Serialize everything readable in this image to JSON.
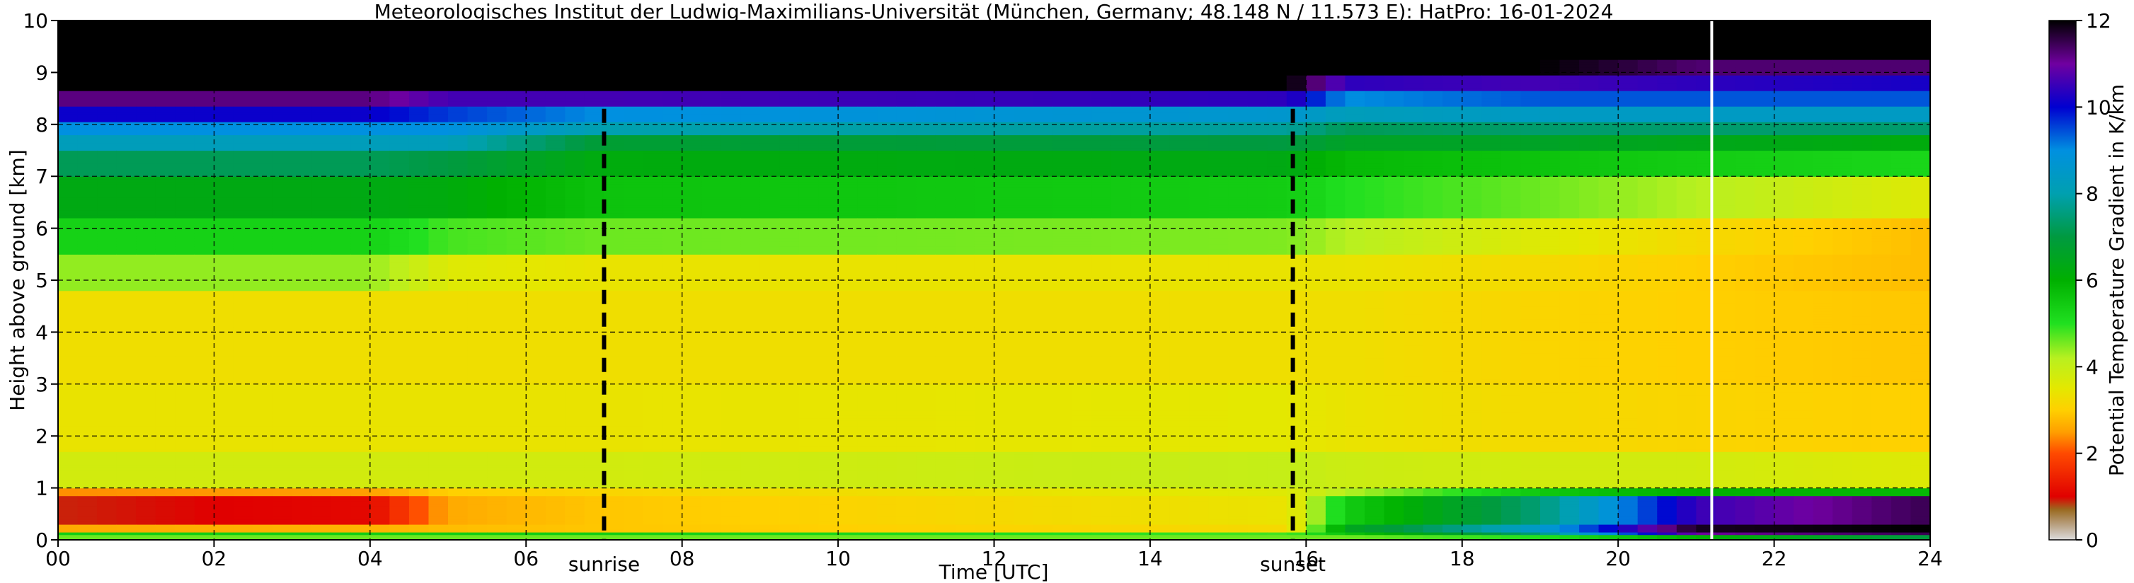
{
  "chart_data": {
    "type": "heatmap",
    "title": "Meteorologisches Institut der Ludwig-Maximilians-Universität (München, Germany; 48.148 N / 11.573 E):    HatPro: 16-01-2024",
    "xlabel": "Time [UTC]",
    "ylabel": "Height above ground [km]",
    "xlim": [
      0,
      24
    ],
    "ylim": [
      0,
      10
    ],
    "x_ticks": [
      "00",
      "02",
      "04",
      "06",
      "08",
      "10",
      "12",
      "14",
      "16",
      "18",
      "20",
      "22",
      "24"
    ],
    "y_ticks": [
      "0",
      "1",
      "2",
      "3",
      "4",
      "5",
      "6",
      "7",
      "8",
      "9",
      "10"
    ],
    "grid": true,
    "markers": [
      {
        "label": "sunrise",
        "x": 7.0
      },
      {
        "label": "sunset",
        "x": 15.83
      }
    ],
    "data_end_x": 21.2,
    "colorbar": {
      "label": "Potential Temperature Gradient in K/km",
      "range": [
        0,
        12
      ],
      "ticks": [
        "0",
        "2",
        "4",
        "6",
        "8",
        "10",
        "12"
      ],
      "stops": [
        {
          "v": 0.0,
          "c": "#dcdcdc"
        },
        {
          "v": 0.35,
          "c": "#b8a080"
        },
        {
          "v": 0.7,
          "c": "#9a6a20"
        },
        {
          "v": 1.0,
          "c": "#e00000"
        },
        {
          "v": 2.0,
          "c": "#ff4a00"
        },
        {
          "v": 2.5,
          "c": "#ffa000"
        },
        {
          "v": 3.0,
          "c": "#ffd000"
        },
        {
          "v": 3.5,
          "c": "#e4e800"
        },
        {
          "v": 4.2,
          "c": "#b8f020"
        },
        {
          "v": 5.0,
          "c": "#20e020"
        },
        {
          "v": 6.0,
          "c": "#00b000"
        },
        {
          "v": 7.0,
          "c": "#009a40"
        },
        {
          "v": 8.0,
          "c": "#00a0b0"
        },
        {
          "v": 9.0,
          "c": "#0090e0"
        },
        {
          "v": 10.0,
          "c": "#0000d0"
        },
        {
          "v": 11.0,
          "c": "#7000a0"
        },
        {
          "v": 12.0,
          "c": "#000000"
        }
      ]
    },
    "field": [
      {
        "x": 0,
        "bands": [
          [
            0,
            0.08,
            4.6
          ],
          [
            0.08,
            0.15,
            5.4
          ],
          [
            0.15,
            0.3,
            2.6
          ],
          [
            0.3,
            0.85,
            0.9
          ],
          [
            0.85,
            1.0,
            2.4
          ],
          [
            1.0,
            1.7,
            3.8
          ],
          [
            1.7,
            3.0,
            3.4
          ],
          [
            3.0,
            4.8,
            3.3
          ],
          [
            4.8,
            5.5,
            4.4
          ],
          [
            5.5,
            6.2,
            5.3
          ],
          [
            6.2,
            7.0,
            6.3
          ],
          [
            7.0,
            7.5,
            7.2
          ],
          [
            7.5,
            7.8,
            8.2
          ],
          [
            7.8,
            8.05,
            9.0
          ],
          [
            8.05,
            8.35,
            10.1
          ],
          [
            8.35,
            8.65,
            11.2
          ],
          [
            8.65,
            10,
            12
          ]
        ]
      },
      {
        "x": 4,
        "bands": [
          [
            0,
            0.08,
            4.6
          ],
          [
            0.08,
            0.15,
            5.4
          ],
          [
            0.15,
            0.3,
            2.7
          ],
          [
            0.3,
            0.85,
            1.1
          ],
          [
            0.85,
            1.0,
            2.5
          ],
          [
            1.0,
            1.7,
            3.8
          ],
          [
            1.7,
            3.0,
            3.4
          ],
          [
            3.0,
            4.8,
            3.3
          ],
          [
            4.8,
            5.5,
            4.4
          ],
          [
            5.5,
            6.2,
            5.3
          ],
          [
            6.2,
            7.0,
            6.3
          ],
          [
            7.0,
            7.5,
            7.2
          ],
          [
            7.5,
            7.8,
            8.2
          ],
          [
            7.8,
            8.05,
            9.0
          ],
          [
            8.05,
            8.35,
            10.1
          ],
          [
            8.35,
            8.65,
            11.2
          ],
          [
            8.65,
            10,
            12
          ]
        ]
      },
      {
        "x": 5,
        "bands": [
          [
            0,
            0.08,
            4.6
          ],
          [
            0.08,
            0.15,
            5.4
          ],
          [
            0.15,
            0.3,
            2.8
          ],
          [
            0.3,
            0.85,
            2.6
          ],
          [
            0.85,
            1.0,
            3.0
          ],
          [
            1.0,
            1.7,
            3.8
          ],
          [
            1.7,
            3.0,
            3.4
          ],
          [
            3.0,
            4.8,
            3.3
          ],
          [
            4.8,
            5.5,
            3.6
          ],
          [
            5.5,
            6.2,
            4.8
          ],
          [
            6.2,
            7.0,
            6.2
          ],
          [
            7.0,
            7.5,
            7.0
          ],
          [
            7.5,
            7.8,
            8.2
          ],
          [
            7.8,
            8.05,
            9.0
          ],
          [
            8.05,
            8.35,
            9.6
          ],
          [
            8.35,
            8.65,
            10.6
          ],
          [
            8.65,
            10,
            12
          ]
        ]
      },
      {
        "x": 7,
        "bands": [
          [
            0,
            0.08,
            4.6
          ],
          [
            0.08,
            0.15,
            5.4
          ],
          [
            0.15,
            0.3,
            2.9
          ],
          [
            0.3,
            0.85,
            2.9
          ],
          [
            0.85,
            1.0,
            3.1
          ],
          [
            1.0,
            1.7,
            3.8
          ],
          [
            1.7,
            3.0,
            3.4
          ],
          [
            3.0,
            4.8,
            3.3
          ],
          [
            4.8,
            5.5,
            3.4
          ],
          [
            5.5,
            6.2,
            4.6
          ],
          [
            6.2,
            7.0,
            5.6
          ],
          [
            7.0,
            7.5,
            6.2
          ],
          [
            7.5,
            7.8,
            6.8
          ],
          [
            7.8,
            8.05,
            8.0
          ],
          [
            8.05,
            8.35,
            9.0
          ],
          [
            8.35,
            8.65,
            10.6
          ],
          [
            8.65,
            10,
            12
          ]
        ]
      },
      {
        "x": 15.8,
        "bands": [
          [
            0,
            0.08,
            4.6
          ],
          [
            0.08,
            0.15,
            4.8
          ],
          [
            0.15,
            0.3,
            3.2
          ],
          [
            0.3,
            0.85,
            3.4
          ],
          [
            0.85,
            1.0,
            3.6
          ],
          [
            1.0,
            1.7,
            4.0
          ],
          [
            1.7,
            3.0,
            3.5
          ],
          [
            3.0,
            4.8,
            3.3
          ],
          [
            4.8,
            5.5,
            3.4
          ],
          [
            5.5,
            6.2,
            4.5
          ],
          [
            6.2,
            7.0,
            5.4
          ],
          [
            7.0,
            7.5,
            6.3
          ],
          [
            7.5,
            7.8,
            7.0
          ],
          [
            7.8,
            8.05,
            7.8
          ],
          [
            8.05,
            8.35,
            8.6
          ],
          [
            8.35,
            8.65,
            10.4
          ],
          [
            8.65,
            10,
            12
          ]
        ]
      },
      {
        "x": 16.5,
        "bands": [
          [
            0,
            0.08,
            4.6
          ],
          [
            0.08,
            0.15,
            5.6
          ],
          [
            0.15,
            0.3,
            6.4
          ],
          [
            0.3,
            0.85,
            5.4
          ],
          [
            0.85,
            1.0,
            4.2
          ],
          [
            1.0,
            1.7,
            3.9
          ],
          [
            1.7,
            3.0,
            3.4
          ],
          [
            3.0,
            4.8,
            3.3
          ],
          [
            4.8,
            5.5,
            3.4
          ],
          [
            5.5,
            6.2,
            4.2
          ],
          [
            6.2,
            7.0,
            5.0
          ],
          [
            7.0,
            7.5,
            5.8
          ],
          [
            7.5,
            7.8,
            6.6
          ],
          [
            7.8,
            8.05,
            7.2
          ],
          [
            8.05,
            8.35,
            8.2
          ],
          [
            8.35,
            8.65,
            9.0
          ],
          [
            8.65,
            8.95,
            10.4
          ],
          [
            8.95,
            10,
            12
          ]
        ]
      },
      {
        "x": 19,
        "bands": [
          [
            0,
            0.08,
            5.0
          ],
          [
            0.08,
            0.15,
            7.5
          ],
          [
            0.15,
            0.3,
            8.5
          ],
          [
            0.3,
            0.85,
            7.5
          ],
          [
            0.85,
            1.0,
            5.5
          ],
          [
            1.0,
            1.7,
            3.8
          ],
          [
            1.7,
            3.0,
            3.2
          ],
          [
            3.0,
            4.8,
            3.1
          ],
          [
            4.8,
            5.5,
            3.2
          ],
          [
            5.5,
            6.2,
            3.6
          ],
          [
            6.2,
            7.0,
            4.6
          ],
          [
            7.0,
            7.5,
            5.6
          ],
          [
            7.5,
            7.8,
            6.6
          ],
          [
            7.8,
            8.05,
            7.4
          ],
          [
            8.05,
            8.35,
            8.4
          ],
          [
            8.35,
            8.65,
            9.4
          ],
          [
            8.65,
            8.95,
            10.6
          ],
          [
            8.95,
            10,
            12
          ]
        ]
      },
      {
        "x": 21,
        "bands": [
          [
            0,
            0.08,
            6.0
          ],
          [
            0.08,
            0.15,
            11.0
          ],
          [
            0.15,
            0.3,
            11.8
          ],
          [
            0.3,
            0.85,
            10.5
          ],
          [
            0.85,
            1.0,
            6.0
          ],
          [
            1.0,
            1.7,
            3.8
          ],
          [
            1.7,
            3.0,
            3.1
          ],
          [
            3.0,
            4.8,
            3.0
          ],
          [
            4.8,
            5.5,
            3.0
          ],
          [
            5.5,
            6.2,
            3.2
          ],
          [
            6.2,
            7.0,
            4.2
          ],
          [
            7.0,
            7.5,
            5.4
          ],
          [
            7.5,
            7.8,
            6.4
          ],
          [
            7.8,
            8.05,
            7.4
          ],
          [
            8.05,
            8.35,
            8.4
          ],
          [
            8.35,
            8.65,
            9.4
          ],
          [
            8.65,
            8.95,
            10.4
          ],
          [
            8.95,
            9.25,
            11.3
          ],
          [
            9.25,
            10,
            12
          ]
        ]
      },
      {
        "x": 24,
        "bands": [
          [
            0,
            0.08,
            7.0
          ],
          [
            0.08,
            0.15,
            11.5
          ],
          [
            0.15,
            0.3,
            12.0
          ],
          [
            0.3,
            0.85,
            11.5
          ],
          [
            0.85,
            1.0,
            5.8
          ],
          [
            1.0,
            1.7,
            3.6
          ],
          [
            1.7,
            3.0,
            3.0
          ],
          [
            3.0,
            4.8,
            2.9
          ],
          [
            4.8,
            5.5,
            2.8
          ],
          [
            5.5,
            6.2,
            2.8
          ],
          [
            6.2,
            7.0,
            3.6
          ],
          [
            7.0,
            7.5,
            5.2
          ],
          [
            7.5,
            7.8,
            6.2
          ],
          [
            7.8,
            8.05,
            7.4
          ],
          [
            8.05,
            8.35,
            8.4
          ],
          [
            8.35,
            8.65,
            9.4
          ],
          [
            8.65,
            8.95,
            10.2
          ],
          [
            8.95,
            9.25,
            11.3
          ],
          [
            9.25,
            10,
            12
          ]
        ]
      }
    ]
  }
}
